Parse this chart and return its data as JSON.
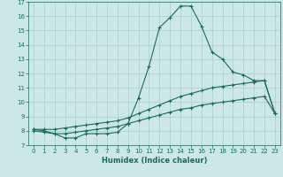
{
  "xlabel": "Humidex (Indice chaleur)",
  "background_color": "#cce8e4",
  "grid_color": "#aacfcb",
  "line_color": "#1a6b5e",
  "xlim": [
    -0.5,
    23.5
  ],
  "ylim": [
    7,
    17
  ],
  "xticks": [
    0,
    1,
    2,
    3,
    4,
    5,
    6,
    7,
    8,
    9,
    10,
    11,
    12,
    13,
    14,
    15,
    16,
    17,
    18,
    19,
    20,
    21,
    22,
    23
  ],
  "yticks": [
    7,
    8,
    9,
    10,
    11,
    12,
    13,
    14,
    15,
    16,
    17
  ],
  "series1_x": [
    0,
    1,
    2,
    3,
    4,
    5,
    6,
    7,
    8,
    9,
    10,
    11,
    12,
    13,
    14,
    15,
    16,
    17,
    18,
    19,
    20,
    21,
    22,
    23
  ],
  "series1_y": [
    8.1,
    8.0,
    7.8,
    7.5,
    7.5,
    7.8,
    7.8,
    7.8,
    7.9,
    8.5,
    10.3,
    12.5,
    15.2,
    15.9,
    16.7,
    16.7,
    15.3,
    13.5,
    13.0,
    12.1,
    11.9,
    11.5,
    11.5,
    9.2
  ],
  "series2_x": [
    0,
    1,
    2,
    3,
    4,
    5,
    6,
    7,
    8,
    9,
    10,
    11,
    12,
    13,
    14,
    15,
    16,
    17,
    18,
    19,
    20,
    21,
    22,
    23
  ],
  "series2_y": [
    8.1,
    8.1,
    8.1,
    8.2,
    8.3,
    8.4,
    8.5,
    8.6,
    8.7,
    8.9,
    9.2,
    9.5,
    9.8,
    10.1,
    10.4,
    10.6,
    10.8,
    11.0,
    11.1,
    11.2,
    11.3,
    11.4,
    11.5,
    9.2
  ],
  "series3_x": [
    0,
    1,
    2,
    3,
    4,
    5,
    6,
    7,
    8,
    9,
    10,
    11,
    12,
    13,
    14,
    15,
    16,
    17,
    18,
    19,
    20,
    21,
    22,
    23
  ],
  "series3_y": [
    8.0,
    7.9,
    7.8,
    7.8,
    7.9,
    8.0,
    8.1,
    8.2,
    8.3,
    8.5,
    8.7,
    8.9,
    9.1,
    9.3,
    9.5,
    9.6,
    9.8,
    9.9,
    10.0,
    10.1,
    10.2,
    10.3,
    10.4,
    9.2
  ],
  "tick_fontsize": 5.0,
  "xlabel_fontsize": 6.0
}
